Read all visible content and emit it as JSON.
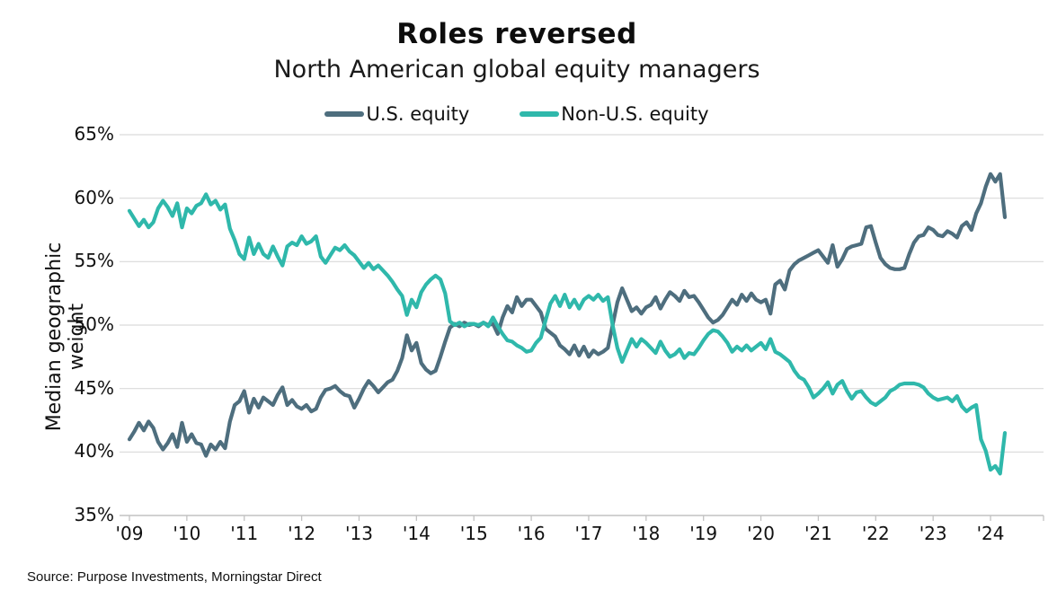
{
  "header": {
    "title": "Roles reversed",
    "subtitle": "North American global equity managers"
  },
  "legend": [
    {
      "label": "U.S. equity",
      "color": "#4e6e7e"
    },
    {
      "label": "Non-U.S. equity",
      "color": "#2fb8ab"
    }
  ],
  "y_axis": {
    "title": "Median geographic weight"
  },
  "source": "Source: Purpose Investments, Morningstar Direct",
  "chart_data": {
    "type": "line",
    "title": "Roles reversed",
    "subtitle": "North American global equity managers",
    "ylabel": "Median geographic weight",
    "ylim": [
      35,
      65
    ],
    "y_tick_step": 5,
    "y_tick_labels": [
      "65%",
      "60%",
      "55%",
      "50%",
      "45%",
      "40%",
      "35%"
    ],
    "x_tick_labels": [
      "'09",
      "'10",
      "'11",
      "'12",
      "'13",
      "'14",
      "'15",
      "'16",
      "'17",
      "'18",
      "'19",
      "'20",
      "'21",
      "'22",
      "'23",
      "'24"
    ],
    "x_start": "2009-01",
    "x_frequency": "monthly",
    "grid": "horizontal",
    "legend_position": "top-center",
    "series": [
      {
        "name": "U.S. equity",
        "color": "#4e6e7e",
        "values": [
          41.0,
          41.6,
          42.3,
          41.7,
          42.4,
          41.9,
          40.8,
          40.2,
          40.7,
          41.4,
          40.4,
          42.3,
          40.8,
          41.4,
          40.7,
          40.6,
          39.7,
          40.6,
          40.2,
          40.8,
          40.3,
          42.4,
          43.7,
          44.0,
          44.8,
          43.1,
          44.2,
          43.5,
          44.3,
          44.0,
          43.7,
          44.5,
          45.1,
          43.7,
          44.1,
          43.6,
          43.4,
          43.7,
          43.2,
          43.4,
          44.3,
          44.9,
          45.0,
          45.2,
          44.8,
          44.5,
          44.4,
          43.5,
          44.2,
          45.0,
          45.6,
          45.2,
          44.7,
          45.1,
          45.5,
          45.7,
          46.4,
          47.4,
          49.2,
          48.0,
          48.6,
          47.0,
          46.5,
          46.2,
          46.4,
          47.5,
          48.7,
          49.8,
          50.1,
          49.9,
          50.2,
          50.0,
          50.1,
          49.9,
          50.2,
          50.0,
          50.1,
          49.3,
          50.6,
          51.5,
          51.0,
          52.2,
          51.5,
          52.0,
          52.0,
          51.5,
          51.0,
          49.7,
          49.4,
          49.1,
          48.4,
          48.1,
          47.7,
          48.4,
          47.6,
          48.3,
          47.5,
          48.0,
          47.7,
          47.9,
          48.2,
          50.0,
          51.8,
          52.9,
          52.0,
          51.1,
          51.4,
          50.9,
          51.4,
          51.6,
          52.2,
          51.3,
          52.0,
          52.6,
          52.3,
          51.9,
          52.7,
          52.2,
          52.3,
          51.8,
          51.2,
          50.6,
          50.2,
          50.4,
          50.8,
          51.4,
          52.0,
          51.6,
          52.4,
          51.9,
          52.5,
          52.0,
          51.8,
          52.0,
          50.9,
          53.2,
          53.5,
          52.8,
          54.3,
          54.8,
          55.1,
          55.3,
          55.5,
          55.7,
          55.9,
          55.4,
          54.9,
          56.3,
          54.6,
          55.2,
          56.0,
          56.2,
          56.3,
          56.4,
          57.7,
          57.8,
          56.5,
          55.3,
          54.8,
          54.5,
          54.4,
          54.4,
          54.5,
          55.6,
          56.5,
          57.0,
          57.1,
          57.7,
          57.5,
          57.1,
          57.0,
          57.4,
          57.2,
          56.9,
          57.8,
          58.1,
          57.5,
          58.8,
          59.6,
          60.9,
          61.9,
          61.3,
          61.9,
          58.5
        ]
      },
      {
        "name": "Non-U.S. equity",
        "color": "#2fb8ab",
        "values": [
          59.0,
          58.4,
          57.8,
          58.3,
          57.7,
          58.1,
          59.2,
          59.8,
          59.3,
          58.6,
          59.6,
          57.7,
          59.2,
          58.8,
          59.4,
          59.6,
          60.3,
          59.5,
          59.8,
          59.1,
          59.5,
          57.6,
          56.7,
          55.6,
          55.2,
          56.9,
          55.6,
          56.4,
          55.6,
          55.3,
          56.2,
          55.4,
          54.7,
          56.2,
          56.5,
          56.3,
          57.0,
          56.4,
          56.6,
          57.0,
          55.4,
          54.9,
          55.5,
          56.1,
          55.9,
          56.3,
          55.8,
          55.5,
          55.0,
          54.5,
          54.9,
          54.4,
          54.7,
          54.3,
          53.9,
          53.4,
          52.8,
          52.3,
          50.8,
          52.0,
          51.4,
          52.6,
          53.2,
          53.6,
          53.9,
          53.6,
          52.5,
          50.3,
          50.0,
          50.2,
          49.9,
          50.1,
          50.1,
          50.0,
          50.2,
          49.9,
          50.6,
          49.9,
          49.3,
          48.8,
          48.7,
          48.4,
          48.2,
          47.9,
          48.0,
          48.6,
          49.0,
          50.4,
          51.7,
          52.3,
          51.5,
          52.4,
          51.4,
          52.0,
          51.3,
          52.0,
          52.3,
          52.0,
          52.4,
          51.9,
          52.2,
          50.0,
          48.2,
          47.1,
          48.0,
          48.9,
          48.3,
          48.9,
          48.6,
          48.2,
          47.8,
          48.7,
          48.0,
          47.5,
          47.7,
          48.1,
          47.4,
          47.8,
          47.7,
          48.2,
          48.8,
          49.3,
          49.6,
          49.5,
          49.1,
          48.6,
          47.9,
          48.3,
          48.0,
          48.4,
          48.0,
          48.3,
          48.6,
          48.1,
          48.9,
          47.9,
          47.7,
          47.4,
          47.1,
          46.4,
          45.9,
          45.7,
          45.1,
          44.3,
          44.6,
          45.0,
          45.5,
          44.6,
          45.3,
          45.6,
          44.8,
          44.2,
          44.7,
          44.8,
          44.3,
          43.9,
          43.7,
          44.0,
          44.3,
          44.8,
          45.0,
          45.3,
          45.4,
          45.4,
          45.4,
          45.3,
          45.1,
          44.6,
          44.3,
          44.1,
          44.2,
          44.3,
          44.0,
          44.4,
          43.6,
          43.2,
          43.5,
          43.7,
          41.0,
          40.1,
          38.6,
          38.9,
          38.3,
          41.5
        ]
      }
    ]
  },
  "colors": {
    "grid": "#d9d9d9",
    "axis": "#c2c2c2",
    "text": "#111111"
  }
}
